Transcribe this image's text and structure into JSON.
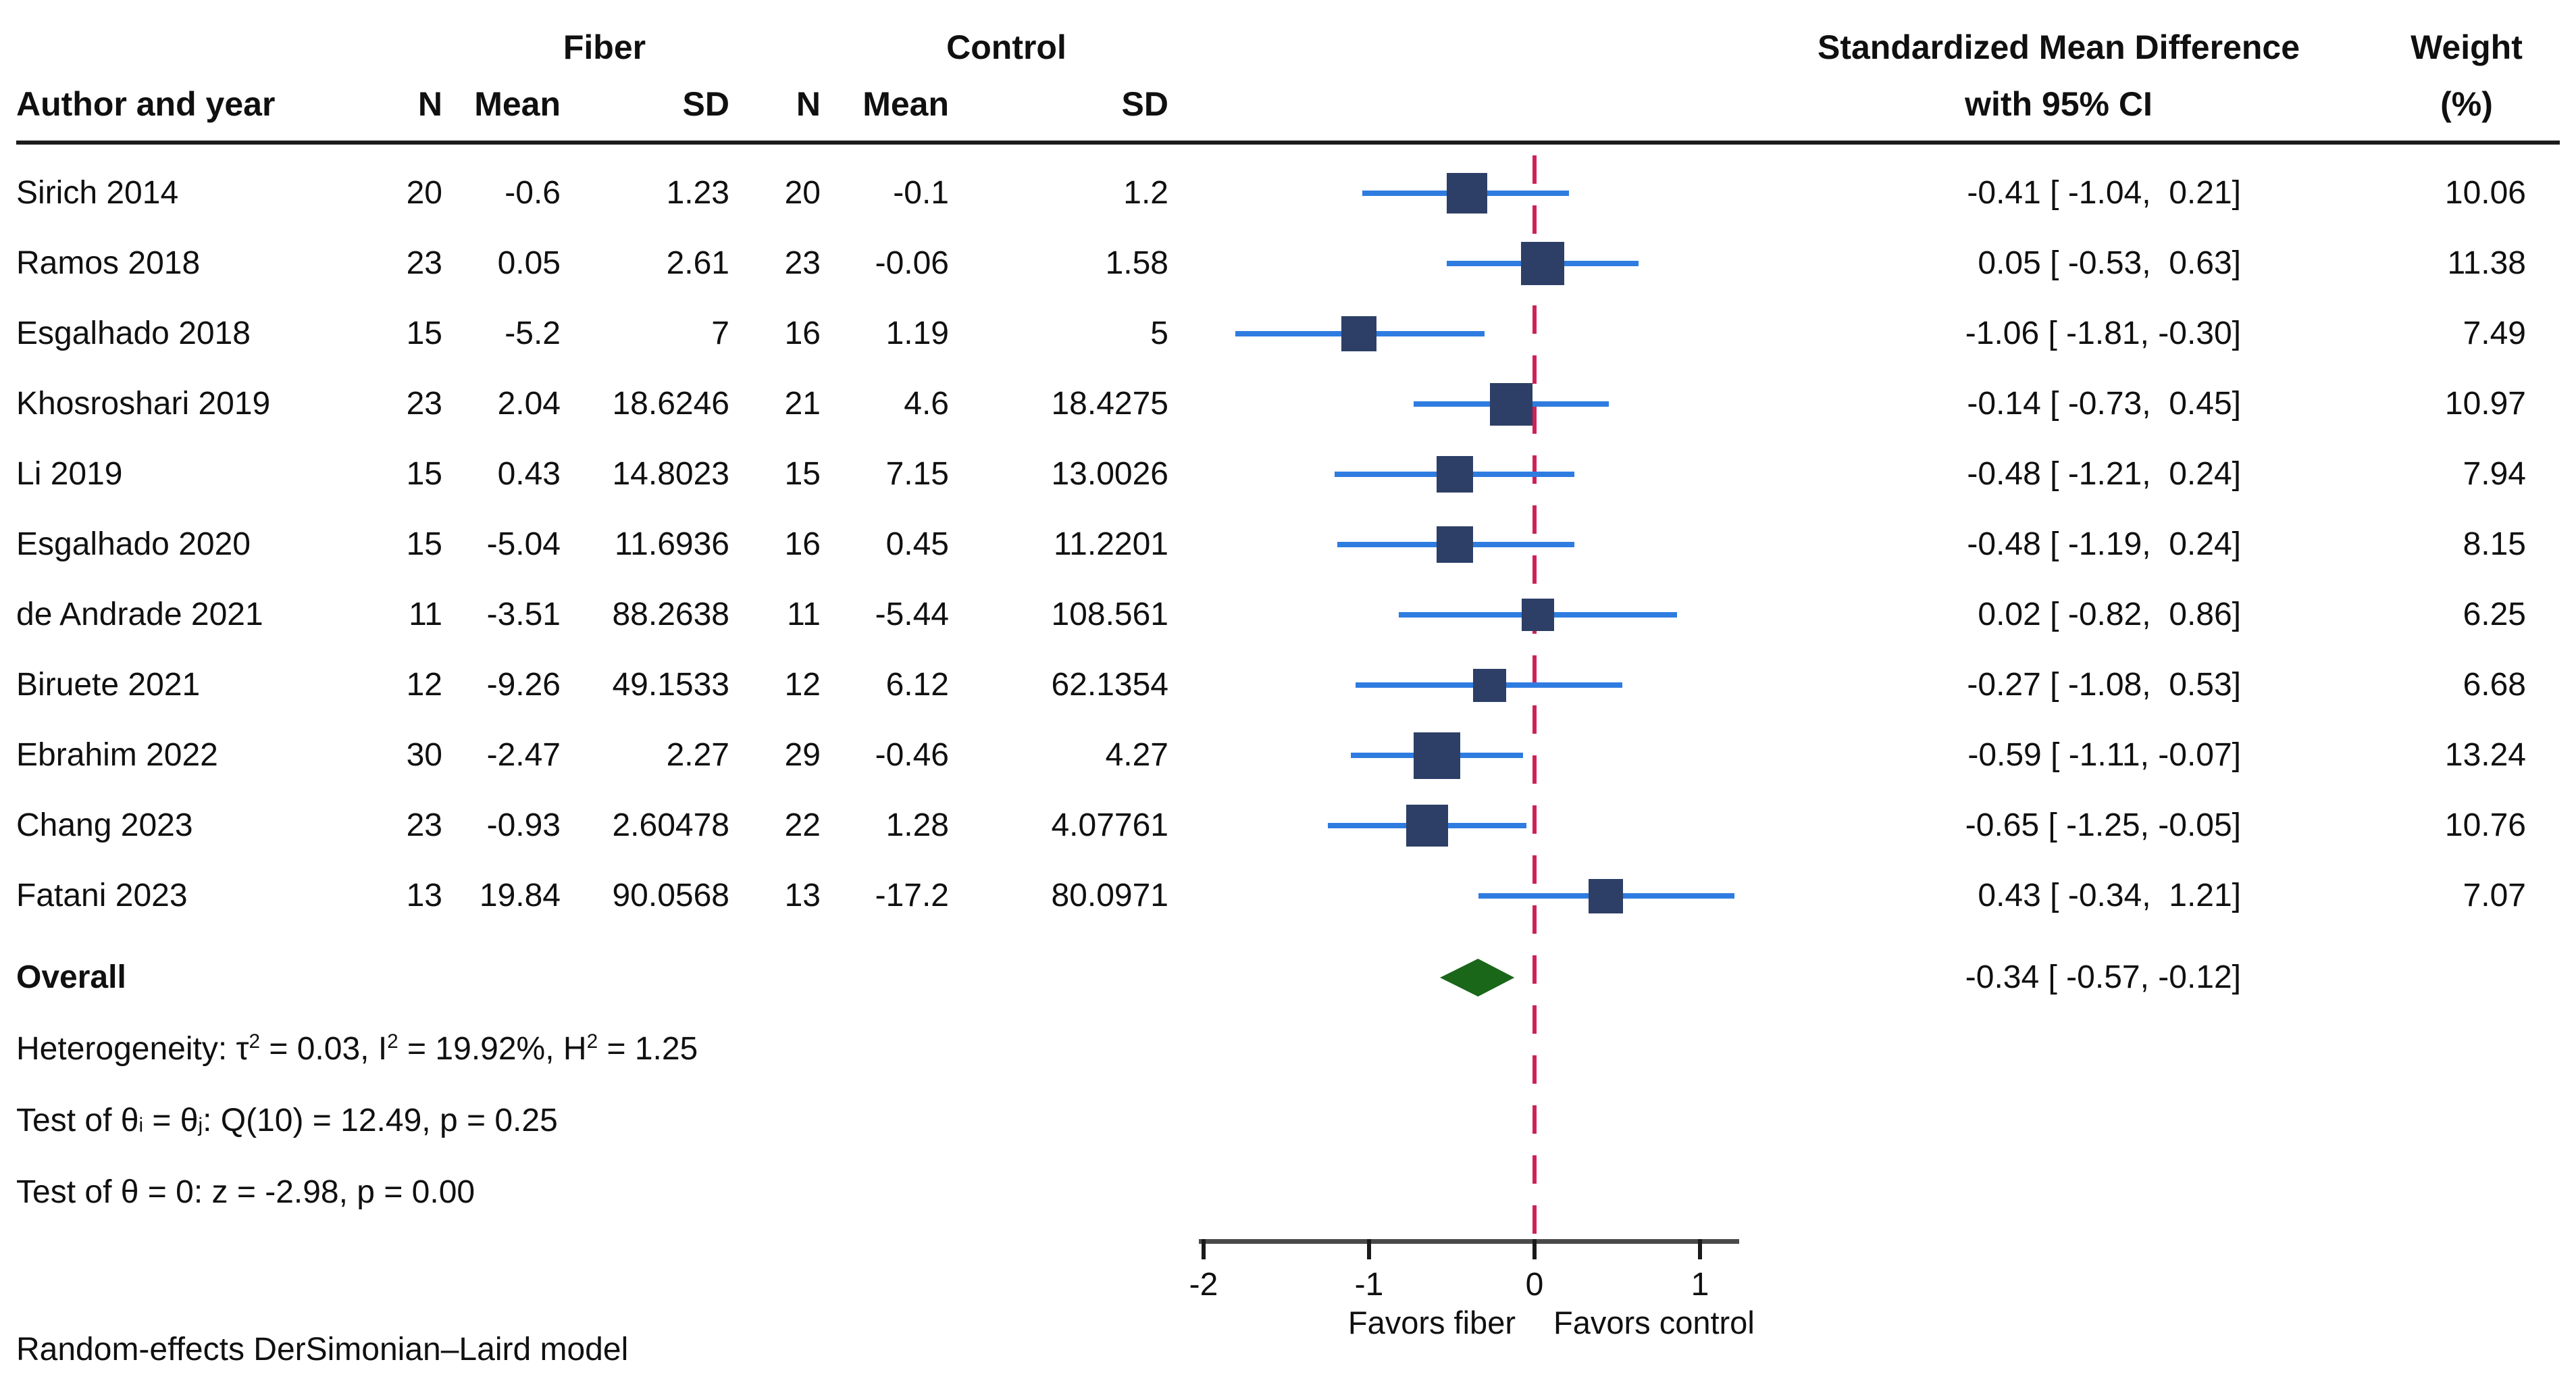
{
  "header": {
    "group1": "Fiber",
    "group2": "Control",
    "author": "Author and year",
    "n": "N",
    "mean": "Mean",
    "sd": "SD",
    "smd1": "Standardized Mean Difference",
    "smd2": "with 95% CI",
    "weight1": "Weight",
    "weight2": "(%)"
  },
  "stats": [
    {
      "segments": [
        {
          "text": "Heterogeneity: τ"
        },
        {
          "text": "2",
          "style": "sup"
        },
        {
          "text": " = 0.03, I"
        },
        {
          "text": "2",
          "style": "sup"
        },
        {
          "text": " = 19.92%, H"
        },
        {
          "text": "2",
          "style": "sup"
        },
        {
          "text": " = 1.25"
        }
      ]
    },
    {
      "segments": [
        {
          "text": "Test of θ"
        },
        {
          "text": "i",
          "style": "sub"
        },
        {
          "text": " = θ"
        },
        {
          "text": "j",
          "style": "sub"
        },
        {
          "text": ": Q(10) = 12.49, p = 0.25"
        }
      ]
    },
    {
      "segments": [
        {
          "text": "Test of θ = 0: z = -2.98, p = 0.00"
        }
      ]
    }
  ],
  "note": "Random-effects DerSimonian–Laird model",
  "axis": {
    "x_ticks": [
      -2,
      -1,
      0,
      1
    ],
    "x_tick_labels": [
      "-2",
      "-1",
      "0",
      "1"
    ],
    "favors_left": "Favors fiber",
    "favors_right": "Favors control"
  },
  "colors": {
    "square": "#2d3f66",
    "ci_line": "#2f7ce0",
    "zero_line": "#ce2257",
    "diamond": "#1a671a",
    "axis_line": "#4a4a4a",
    "tick": "#1a1a1a",
    "text": "#101010"
  },
  "chart_data": {
    "type": "forest",
    "effect_measure": "Standardized Mean Difference",
    "xlim": [
      -2,
      1.3
    ],
    "x_ticks": [
      -2,
      -1,
      0,
      1
    ],
    "zero_line": 0,
    "studies": [
      {
        "author": "Sirich 2014",
        "n1": "20",
        "mean1": "-0.6",
        "sd1": "1.23",
        "n2": "20",
        "mean2": "-0.1",
        "sd2": "1.2",
        "es": -0.41,
        "lo": -1.04,
        "hi": 0.21,
        "ci_text": "-0.41 [ -1.04,  0.21]",
        "weight": 10.06,
        "weight_text": "10.06"
      },
      {
        "author": "Ramos 2018",
        "n1": "23",
        "mean1": "0.05",
        "sd1": "2.61",
        "n2": "23",
        "mean2": "-0.06",
        "sd2": "1.58",
        "es": 0.05,
        "lo": -0.53,
        "hi": 0.63,
        "ci_text": " 0.05 [ -0.53,  0.63]",
        "weight": 11.38,
        "weight_text": "11.38"
      },
      {
        "author": "Esgalhado 2018",
        "n1": "15",
        "mean1": "-5.2",
        "sd1": "7",
        "n2": "16",
        "mean2": "1.19",
        "sd2": "5",
        "es": -1.06,
        "lo": -1.81,
        "hi": -0.3,
        "ci_text": "-1.06 [ -1.81, -0.30]",
        "weight": 7.49,
        "weight_text": "7.49"
      },
      {
        "author": "Khosroshari 2019",
        "n1": "23",
        "mean1": "2.04",
        "sd1": "18.6246",
        "n2": "21",
        "mean2": "4.6",
        "sd2": "18.4275",
        "es": -0.14,
        "lo": -0.73,
        "hi": 0.45,
        "ci_text": "-0.14 [ -0.73,  0.45]",
        "weight": 10.97,
        "weight_text": "10.97"
      },
      {
        "author": "Li 2019",
        "n1": "15",
        "mean1": "0.43",
        "sd1": "14.8023",
        "n2": "15",
        "mean2": "7.15",
        "sd2": "13.0026",
        "es": -0.48,
        "lo": -1.21,
        "hi": 0.24,
        "ci_text": "-0.48 [ -1.21,  0.24]",
        "weight": 7.94,
        "weight_text": "7.94"
      },
      {
        "author": "Esgalhado 2020",
        "n1": "15",
        "mean1": "-5.04",
        "sd1": "11.6936",
        "n2": "16",
        "mean2": "0.45",
        "sd2": "11.2201",
        "es": -0.48,
        "lo": -1.19,
        "hi": 0.24,
        "ci_text": "-0.48 [ -1.19,  0.24]",
        "weight": 8.15,
        "weight_text": "8.15"
      },
      {
        "author": "de Andrade 2021",
        "n1": "11",
        "mean1": "-3.51",
        "sd1": "88.2638",
        "n2": "11",
        "mean2": "-5.44",
        "sd2": "108.561",
        "es": 0.02,
        "lo": -0.82,
        "hi": 0.86,
        "ci_text": " 0.02 [ -0.82,  0.86]",
        "weight": 6.25,
        "weight_text": "6.25"
      },
      {
        "author": "Biruete 2021",
        "n1": "12",
        "mean1": "-9.26",
        "sd1": "49.1533",
        "n2": "12",
        "mean2": "6.12",
        "sd2": "62.1354",
        "es": -0.27,
        "lo": -1.08,
        "hi": 0.53,
        "ci_text": "-0.27 [ -1.08,  0.53]",
        "weight": 6.68,
        "weight_text": "6.68"
      },
      {
        "author": "Ebrahim 2022",
        "n1": "30",
        "mean1": "-2.47",
        "sd1": "2.27",
        "n2": "29",
        "mean2": "-0.46",
        "sd2": "4.27",
        "es": -0.59,
        "lo": -1.11,
        "hi": -0.07,
        "ci_text": "-0.59 [ -1.11, -0.07]",
        "weight": 13.24,
        "weight_text": "13.24"
      },
      {
        "author": "Chang 2023",
        "n1": "23",
        "mean1": "-0.93",
        "sd1": "2.60478",
        "n2": "22",
        "mean2": "1.28",
        "sd2": "4.07761",
        "es": -0.65,
        "lo": -1.25,
        "hi": -0.05,
        "ci_text": "-0.65 [ -1.25, -0.05]",
        "weight": 10.76,
        "weight_text": "10.76"
      },
      {
        "author": "Fatani 2023",
        "n1": "13",
        "mean1": "19.84",
        "sd1": "90.0568",
        "n2": "13",
        "mean2": "-17.2",
        "sd2": "80.0971",
        "es": 0.43,
        "lo": -0.34,
        "hi": 1.21,
        "ci_text": " 0.43 [ -0.34,  1.21]",
        "weight": 7.07,
        "weight_text": "7.07"
      }
    ],
    "overall": {
      "label": "Overall",
      "es": -0.34,
      "lo": -0.57,
      "hi": -0.12,
      "ci_text": "-0.34 [ -0.57, -0.12]"
    }
  }
}
